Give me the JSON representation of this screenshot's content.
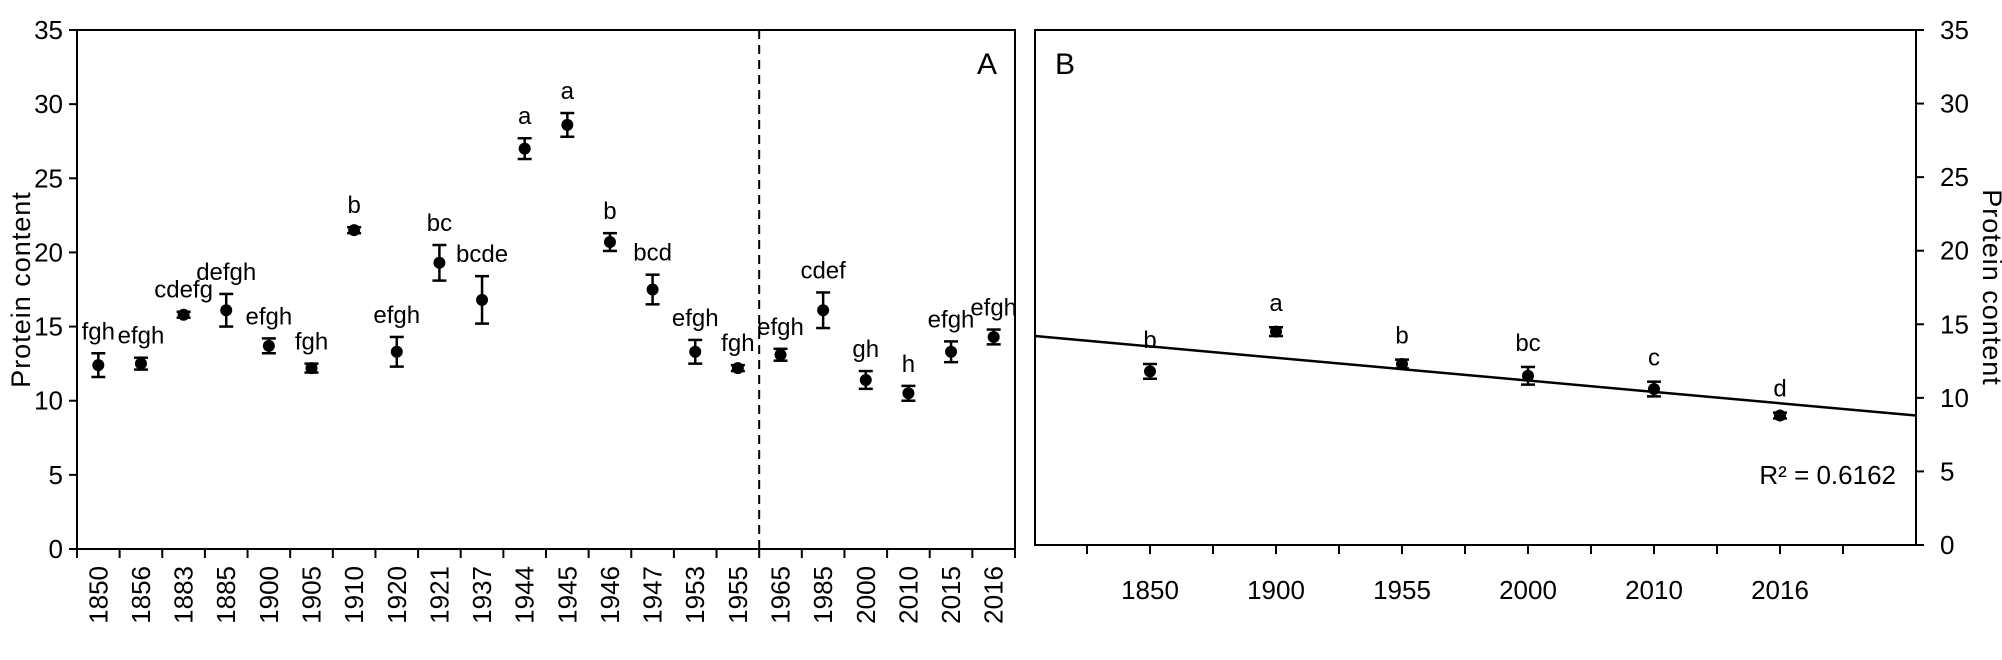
{
  "chart_data": [
    {
      "type": "scatter",
      "panel_label": "A",
      "ylabel": "Protein content",
      "ylim": [
        0,
        35
      ],
      "yticks": [
        0,
        5,
        10,
        15,
        20,
        25,
        30,
        35
      ],
      "error_bars": true,
      "divider_after_category": "1955",
      "categories": [
        "1850",
        "1856",
        "1883",
        "1885",
        "1900",
        "1905",
        "1910",
        "1920",
        "1921",
        "1937",
        "1944",
        "1945",
        "1946",
        "1947",
        "1953",
        "1955",
        "1965",
        "1985",
        "2000",
        "2010",
        "2015",
        "2016"
      ],
      "values": [
        12.4,
        12.5,
        15.8,
        16.1,
        13.7,
        12.2,
        21.5,
        13.3,
        19.3,
        16.8,
        27.0,
        28.6,
        20.7,
        17.5,
        13.3,
        12.2,
        13.1,
        16.1,
        11.4,
        10.5,
        13.3,
        14.3
      ],
      "errors": [
        0.8,
        0.4,
        0.2,
        1.1,
        0.5,
        0.3,
        0.2,
        1.0,
        1.2,
        1.6,
        0.7,
        0.8,
        0.6,
        1.0,
        0.8,
        0.2,
        0.4,
        1.2,
        0.6,
        0.5,
        0.7,
        0.5
      ],
      "significance": [
        "fgh",
        "efgh",
        "cdefg",
        "defgh",
        "efgh",
        "fgh",
        "b",
        "efgh",
        "bc",
        "bcde",
        "a",
        "a",
        "b",
        "bcd",
        "efgh",
        "fgh",
        "efgh",
        "cdef",
        "gh",
        "h",
        "efgh",
        "efgh"
      ]
    },
    {
      "type": "scatter",
      "panel_label": "B",
      "ylabel": "Protein content",
      "ylim": [
        0,
        35
      ],
      "yticks": [
        0,
        5,
        10,
        15,
        20,
        25,
        30,
        35
      ],
      "error_bars": true,
      "categories": [
        "1850",
        "1900",
        "1955",
        "2000",
        "2010",
        "2016"
      ],
      "values": [
        11.8,
        14.5,
        12.3,
        11.5,
        10.6,
        8.8
      ],
      "errors": [
        0.5,
        0.3,
        0.3,
        0.6,
        0.5,
        0.2
      ],
      "significance": [
        "b",
        "a",
        "b",
        "bc",
        "c",
        "d"
      ],
      "trendline": {
        "y_start": 14.2,
        "y_end": 8.8
      },
      "r_squared_label": "R² = 0.6162"
    }
  ]
}
